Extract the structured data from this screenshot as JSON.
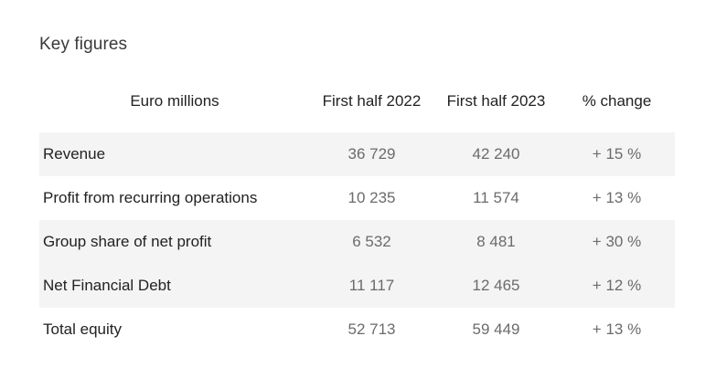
{
  "title": "Key figures",
  "table": {
    "columns": [
      "Euro millions",
      "First half 2022",
      "First half 2023",
      "% change"
    ],
    "rows": [
      {
        "label": "Revenue",
        "h1_2022": "36 729",
        "h1_2023": "42 240",
        "change": "+ 15 %"
      },
      {
        "label": "Profit from recurring operations",
        "h1_2022": "10 235",
        "h1_2023": "11 574",
        "change": "+ 13 %"
      },
      {
        "label": "Group share of net profit",
        "h1_2022": "6 532",
        "h1_2023": "8 481",
        "change": "+ 30 %"
      },
      {
        "label": "Net Financial Debt",
        "h1_2022": "11 117",
        "h1_2023": "12 465",
        "change": "+ 12 %"
      },
      {
        "label": "Total equity",
        "h1_2022": "52 713",
        "h1_2023": "59 449",
        "change": "+ 13 %"
      }
    ]
  }
}
